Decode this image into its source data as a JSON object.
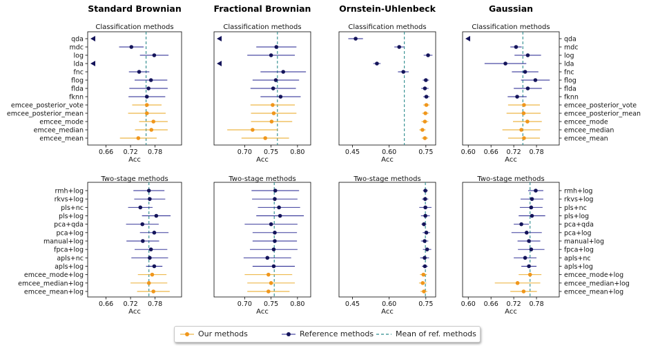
{
  "chart_data": [
    {
      "type": "scatter",
      "col_title": "Standard Brownian",
      "title": "Classification methods",
      "xlabel": "Acc",
      "xlim": [
        0.615,
        0.845
      ],
      "xticks": [
        "0.66",
        "0.72",
        "0.78"
      ],
      "xtick_values": [
        0.66,
        0.72,
        0.78
      ],
      "mean_ref": 0.758,
      "labels": [
        "qda",
        "mdc",
        "log",
        "lda",
        "fnc",
        "flog",
        "flda",
        "fknn",
        "emcee_posterior_vote",
        "emcee_posterior_mean",
        "emcee_mode",
        "emcee_median",
        "emcee_mean"
      ],
      "groups": [
        "ref",
        "ref",
        "ref",
        "ref",
        "ref",
        "ref",
        "ref",
        "ref",
        "ours",
        "ours",
        "ours",
        "ours",
        "ours"
      ],
      "means": [
        null,
        0.722,
        0.778,
        null,
        0.741,
        0.77,
        0.764,
        0.76,
        0.76,
        0.76,
        0.776,
        0.771,
        0.739
      ],
      "errors": [
        0,
        0.03,
        0.035,
        0,
        0.025,
        0.04,
        0.047,
        0.045,
        0.036,
        0.046,
        0.035,
        0.04,
        0.045
      ],
      "offscale": [
        true,
        false,
        false,
        true,
        false,
        false,
        false,
        false,
        false,
        false,
        false,
        false,
        false
      ]
    },
    {
      "type": "scatter",
      "col_title": "Fractional Brownian",
      "title": "Classification methods",
      "xlabel": "Acc",
      "xlim": [
        0.642,
        0.825
      ],
      "xticks": [
        "0.70",
        "0.75",
        "0.80"
      ],
      "xtick_values": [
        0.7,
        0.75,
        0.8
      ],
      "mean_ref": 0.762,
      "labels": [
        "qda",
        "mdc",
        "log",
        "lda",
        "fnc",
        "flog",
        "flda",
        "fknn",
        "emcee_posterior_vote",
        "emcee_posterior_mean",
        "emcee_mode",
        "emcee_median",
        "emcee_mean"
      ],
      "groups": [
        "ref",
        "ref",
        "ref",
        "ref",
        "ref",
        "ref",
        "ref",
        "ref",
        "ours",
        "ours",
        "ours",
        "ours",
        "ours"
      ],
      "means": [
        null,
        0.76,
        0.75,
        null,
        0.773,
        0.759,
        0.754,
        0.768,
        0.753,
        0.755,
        0.751,
        0.715,
        0.739
      ],
      "errors": [
        0,
        0.038,
        0.045,
        0,
        0.043,
        0.044,
        0.043,
        0.038,
        0.042,
        0.043,
        0.039,
        0.048,
        0.045
      ],
      "offscale": [
        true,
        false,
        false,
        true,
        false,
        false,
        false,
        false,
        false,
        false,
        false,
        false,
        false
      ]
    },
    {
      "type": "scatter",
      "col_title": "Ornstein-Uhlenbeck",
      "title": "Classification methods",
      "xlabel": "Acc",
      "xlim": [
        0.395,
        0.79
      ],
      "xticks": [
        "0.45",
        "0.60",
        "0.75"
      ],
      "xtick_values": [
        0.45,
        0.6,
        0.75
      ],
      "mean_ref": 0.662,
      "labels": [
        "qda",
        "mdc",
        "log",
        "lda",
        "fnc",
        "flog",
        "flda",
        "fknn",
        "emcee_posterior_vote",
        "emcee_posterior_mean",
        "emcee_mode",
        "emcee_median",
        "emcee_mean"
      ],
      "groups": [
        "ref",
        "ref",
        "ref",
        "ref",
        "ref",
        "ref",
        "ref",
        "ref",
        "ours",
        "ours",
        "ours",
        "ours",
        "ours"
      ],
      "means": [
        0.463,
        0.641,
        0.759,
        0.55,
        0.658,
        0.75,
        0.746,
        0.752,
        0.752,
        0.748,
        0.746,
        0.736,
        0.746
      ],
      "errors": [
        0.03,
        0.02,
        0.018,
        0.015,
        0.022,
        0.013,
        0.015,
        0.013,
        0.013,
        0.013,
        0.014,
        0.013,
        0.013
      ],
      "offscale": [
        false,
        false,
        false,
        false,
        false,
        false,
        false,
        false,
        false,
        false,
        false,
        false,
        false
      ]
    },
    {
      "type": "scatter",
      "col_title": "Gaussian",
      "title": "Classification methods",
      "xlabel": "Acc",
      "xlim": [
        0.585,
        0.84
      ],
      "xticks": [
        "0.60",
        "0.66",
        "0.72",
        "0.78"
      ],
      "xtick_values": [
        0.6,
        0.66,
        0.72,
        0.78
      ],
      "mean_ref": 0.744,
      "labels": [
        "qda",
        "mdc",
        "log",
        "lda",
        "fnc",
        "flog",
        "flda",
        "fknn",
        "emcee_posterior_vote",
        "emcee_posterior_mean",
        "emcee_mode",
        "emcee_median",
        "emcee_mean"
      ],
      "groups": [
        "ref",
        "ref",
        "ref",
        "ref",
        "ref",
        "ref",
        "ref",
        "ref",
        "ours",
        "ours",
        "ours",
        "ours",
        "ours"
      ],
      "means": [
        null,
        0.726,
        0.757,
        0.698,
        0.75,
        0.777,
        0.757,
        0.729,
        0.747,
        0.746,
        0.756,
        0.74,
        0.747
      ],
      "errors": [
        0,
        0.015,
        0.035,
        0.055,
        0.035,
        0.038,
        0.037,
        0.025,
        0.042,
        0.045,
        0.038,
        0.05,
        0.042
      ],
      "offscale": [
        true,
        false,
        false,
        false,
        false,
        false,
        false,
        false,
        false,
        false,
        false,
        false,
        false
      ]
    },
    {
      "type": "scatter",
      "title": "Two-stage methods",
      "xlabel": "Acc",
      "xlim": [
        0.615,
        0.845
      ],
      "xticks": [
        "0.66",
        "0.72",
        "0.78"
      ],
      "xtick_values": [
        0.66,
        0.72,
        0.78
      ],
      "mean_ref": 0.765,
      "labels": [
        "rmh+log",
        "rkvs+log",
        "pls+nc",
        "pls+log",
        "pca+qda",
        "pca+log",
        "manual+log",
        "fpca+log",
        "apls+nc",
        "apls+log",
        "emcee_mode+log",
        "emcee_median+log",
        "emcee_mean+log"
      ],
      "groups": [
        "ref",
        "ref",
        "ref",
        "ref",
        "ref",
        "ref",
        "ref",
        "ref",
        "ref",
        "ref",
        "ours",
        "ours",
        "ours"
      ],
      "means": [
        0.765,
        0.767,
        0.744,
        0.783,
        0.749,
        0.778,
        0.75,
        0.77,
        0.767,
        0.778,
        0.773,
        0.765,
        0.776
      ],
      "errors": [
        0.038,
        0.038,
        0.03,
        0.035,
        0.04,
        0.035,
        0.04,
        0.04,
        0.045,
        0.02,
        0.035,
        0.045,
        0.04
      ],
      "offscale": [
        false,
        false,
        false,
        false,
        false,
        false,
        false,
        false,
        false,
        false,
        false,
        false,
        false
      ]
    },
    {
      "type": "scatter",
      "title": "Two-stage methods",
      "xlabel": "Acc",
      "xlim": [
        0.642,
        0.825
      ],
      "xticks": [
        "0.70",
        "0.75",
        "0.80"
      ],
      "xtick_values": [
        0.7,
        0.75,
        0.8
      ],
      "mean_ref": 0.756,
      "labels": [
        "rmh+log",
        "rkvs+log",
        "pls+nc",
        "pls+log",
        "pca+qda",
        "pca+log",
        "manual+log",
        "fpca+log",
        "apls+nc",
        "apls+log",
        "emcee_mode+log",
        "emcee_median+log",
        "emcee_mean+log"
      ],
      "groups": [
        "ref",
        "ref",
        "ref",
        "ref",
        "ref",
        "ref",
        "ref",
        "ref",
        "ref",
        "ref",
        "ours",
        "ours",
        "ours"
      ],
      "means": [
        0.758,
        0.757,
        0.765,
        0.767,
        0.75,
        0.757,
        0.757,
        0.755,
        0.743,
        0.755,
        0.745,
        0.75,
        0.745
      ],
      "errors": [
        0.045,
        0.043,
        0.04,
        0.045,
        0.05,
        0.042,
        0.042,
        0.045,
        0.045,
        0.04,
        0.045,
        0.045,
        0.04
      ],
      "offscale": [
        false,
        false,
        false,
        false,
        false,
        false,
        false,
        false,
        false,
        false,
        false,
        false,
        false
      ]
    },
    {
      "type": "scatter",
      "title": "Two-stage methods",
      "xlabel": "Acc",
      "xlim": [
        0.395,
        0.79
      ],
      "xticks": [
        "0.45",
        "0.60",
        "0.75"
      ],
      "xtick_values": [
        0.45,
        0.6,
        0.75
      ],
      "mean_ref": 0.748,
      "labels": [
        "rmh+log",
        "rkvs+log",
        "pls+nc",
        "pls+log",
        "pca+qda",
        "pca+log",
        "manual+log",
        "fpca+log",
        "apls+nc",
        "apls+log",
        "emcee_mode+log",
        "emcee_median+log",
        "emcee_mean+log"
      ],
      "groups": [
        "ref",
        "ref",
        "ref",
        "ref",
        "ref",
        "ref",
        "ref",
        "ref",
        "ref",
        "ref",
        "ours",
        "ours",
        "ours"
      ],
      "means": [
        0.748,
        0.747,
        0.748,
        0.748,
        0.742,
        0.752,
        0.745,
        0.755,
        0.745,
        0.746,
        0.74,
        0.737,
        0.742
      ],
      "errors": [
        0.01,
        0.013,
        0.025,
        0.018,
        0.01,
        0.015,
        0.015,
        0.017,
        0.018,
        0.012,
        0.014,
        0.015,
        0.014
      ],
      "offscale": [
        false,
        false,
        false,
        false,
        false,
        false,
        false,
        false,
        false,
        false,
        false,
        false,
        false
      ]
    },
    {
      "type": "scatter",
      "title": "Two-stage methods",
      "xlabel": "Acc",
      "xlim": [
        0.585,
        0.84
      ],
      "xticks": [
        "0.60",
        "0.66",
        "0.72",
        "0.78"
      ],
      "xtick_values": [
        0.6,
        0.66,
        0.72,
        0.78
      ],
      "mean_ref": 0.763,
      "labels": [
        "rmh+log",
        "rkvs+log",
        "pls+nc",
        "pls+log",
        "pca+qda",
        "pca+log",
        "manual+log",
        "fpca+log",
        "apls+nc",
        "apls+log",
        "emcee_mode+log",
        "emcee_median+log",
        "emcee_mean+log"
      ],
      "groups": [
        "ref",
        "ref",
        "ref",
        "ref",
        "ref",
        "ref",
        "ref",
        "ref",
        "ref",
        "ref",
        "ours",
        "ours",
        "ours"
      ],
      "means": [
        0.778,
        0.768,
        0.766,
        0.768,
        0.74,
        0.754,
        0.76,
        0.766,
        0.75,
        0.76,
        0.763,
        0.73,
        0.746
      ],
      "errors": [
        0.02,
        0.03,
        0.03,
        0.035,
        0.02,
        0.04,
        0.03,
        0.035,
        0.03,
        0.02,
        0.03,
        0.06,
        0.035
      ],
      "offscale": [
        false,
        false,
        false,
        false,
        false,
        false,
        false,
        false,
        false,
        false,
        false,
        false,
        false
      ]
    }
  ],
  "legend": {
    "ours": "Our methods",
    "ref": "Reference methods",
    "mean": "Mean of ref. methods"
  },
  "colors": {
    "ours": "#f0961b",
    "ours_err": "#e8a317",
    "ref": "#14145a",
    "ref_err": "#1c1c8c",
    "mean": "#2a8a8c"
  }
}
